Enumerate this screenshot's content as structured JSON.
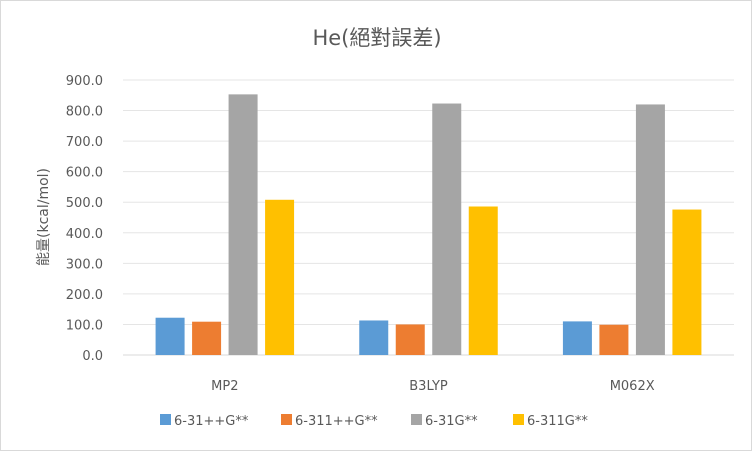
{
  "chart_data": {
    "type": "bar",
    "title": "He(絕對誤差)",
    "xlabel": "",
    "ylabel": "能量(kcal/mol)",
    "ylim": [
      0,
      900
    ],
    "yticks": [
      "0.0",
      "100.0",
      "200.0",
      "300.0",
      "400.0",
      "500.0",
      "600.0",
      "700.0",
      "800.0",
      "900.0"
    ],
    "categories": [
      "MP2",
      "B3LYP",
      "M062X"
    ],
    "series": [
      {
        "name": "6-31++G**",
        "color": "#5b9bd5",
        "values": [
          122,
          113,
          110
        ]
      },
      {
        "name": "6-311++G**",
        "color": "#ed7d31",
        "values": [
          109,
          100,
          99
        ]
      },
      {
        "name": "6-31G**",
        "color": "#a5a5a5",
        "values": [
          853,
          823,
          820
        ]
      },
      {
        "name": "6-311G**",
        "color": "#ffc000",
        "values": [
          508,
          486,
          476
        ]
      }
    ],
    "grid": true,
    "legend_position": "bottom"
  }
}
